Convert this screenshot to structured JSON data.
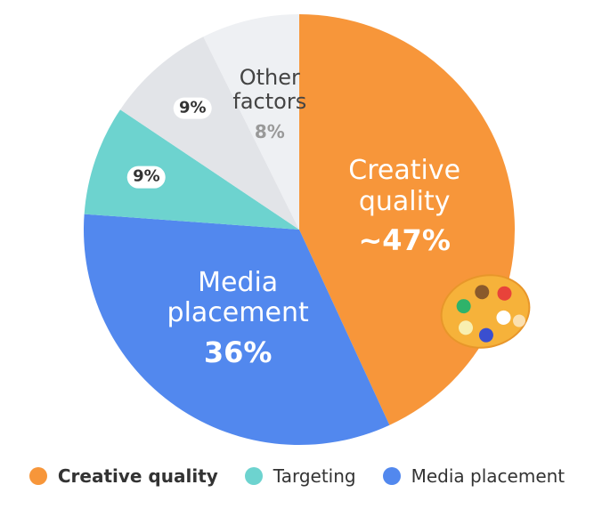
{
  "chart_data": {
    "type": "pie",
    "categories": [
      "Creative quality",
      "Media placement",
      null,
      null,
      "Other factors"
    ],
    "values": [
      47,
      36,
      9,
      9,
      8
    ],
    "value_labels": [
      "~47%",
      "36%",
      "9%",
      "9%",
      "8%"
    ],
    "colors": [
      "#f7963a",
      "#5288ee",
      "#6dd3cf",
      "#e2e4e8",
      "#eef0f3"
    ],
    "legend": [
      {
        "name": "Creative quality",
        "color": "#f7963a"
      },
      {
        "name": "Targeting",
        "color": "#6dd3cf"
      },
      {
        "name": "Media placement",
        "color": "#5288ee"
      }
    ]
  }
}
